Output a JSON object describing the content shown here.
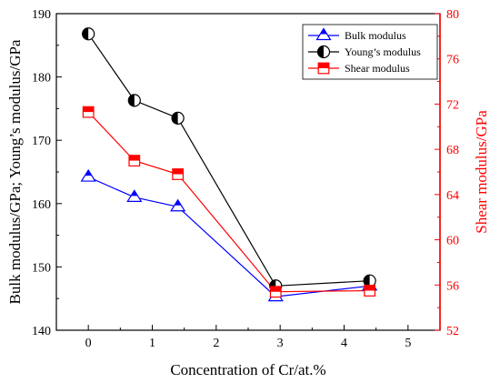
{
  "chart_data": {
    "type": "line",
    "xlabel": "Concentration of Cr/at.%",
    "ylabel_left": "Bulk modulus/GPa; Young’s modulus/GPa",
    "ylabel_right": "Shear modulus/GPa",
    "xlim": [
      -0.5,
      5.5
    ],
    "xticks": [
      "0",
      "1",
      "2",
      "3",
      "4",
      "5"
    ],
    "ylim_left": [
      140,
      190
    ],
    "yticks_left": [
      "140",
      "150",
      "160",
      "170",
      "180",
      "190"
    ],
    "ylim_right": [
      52,
      80
    ],
    "yticks_right": [
      "52",
      "56",
      "60",
      "64",
      "68",
      "72",
      "76",
      "80"
    ],
    "right_axis_color": "#ff0000",
    "legend_position": "top-right",
    "series": [
      {
        "name": "Bulk modulus",
        "axis": "left",
        "marker": "triangle-half-filled",
        "color": "#0000ff",
        "x": [
          0,
          0.72,
          1.4,
          2.93,
          4.4
        ],
        "y": [
          164.2,
          161.0,
          159.5,
          145.3,
          147.0
        ]
      },
      {
        "name": "Young’s modulus",
        "axis": "left",
        "marker": "circle-half-filled",
        "color": "#000000",
        "x": [
          0,
          0.72,
          1.4,
          2.93,
          4.4
        ],
        "y": [
          186.8,
          176.3,
          173.5,
          147.0,
          147.8
        ]
      },
      {
        "name": "Shear modulus",
        "axis": "right",
        "marker": "square-half-filled",
        "color": "#ff0000",
        "x": [
          0,
          0.72,
          1.4,
          2.93,
          4.4
        ],
        "y": [
          71.3,
          67.0,
          65.8,
          55.4,
          55.5
        ]
      }
    ]
  }
}
